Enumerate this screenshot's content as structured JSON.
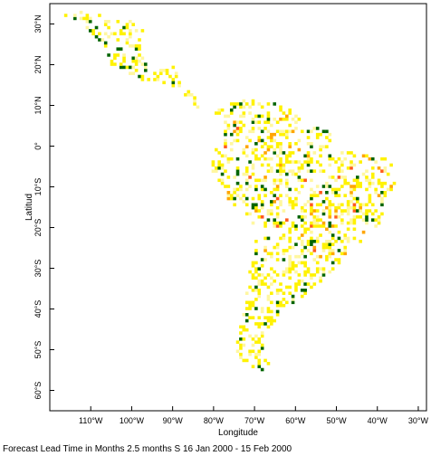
{
  "map": {
    "x_axis_title": "Longitude",
    "y_axis_title": "Latitud",
    "caption": "Forecast Lead Time in Months 2.5 months S 16 Jan 2000 - 15 Feb 2000",
    "lon_range": [
      -120,
      -28
    ],
    "lat_range": [
      -65,
      35
    ],
    "colors": {
      "yellow": "#fff200",
      "light_yellow": "#fff7a0",
      "orange": "#ffa500",
      "red_orange": "#ff5a1f",
      "green": "#006400",
      "frame": "#000000"
    },
    "lon_ticks": [
      {
        "value": -110,
        "label": "110°W"
      },
      {
        "value": -100,
        "label": "100°W"
      },
      {
        "value": -90,
        "label": "90°W"
      },
      {
        "value": -80,
        "label": "80°W"
      },
      {
        "value": -70,
        "label": "70°W"
      },
      {
        "value": -60,
        "label": "60°W"
      },
      {
        "value": -50,
        "label": "50°W"
      },
      {
        "value": -40,
        "label": "40°W"
      },
      {
        "value": -30,
        "label": "30°W"
      }
    ],
    "lat_ticks": [
      {
        "value": 30,
        "label": "30°N"
      },
      {
        "value": 20,
        "label": "20°N"
      },
      {
        "value": 10,
        "label": "10°N"
      },
      {
        "value": 0,
        "label": "0°"
      },
      {
        "value": -10,
        "label": "10°S"
      },
      {
        "value": -20,
        "label": "20°S"
      },
      {
        "value": -30,
        "label": "30°S"
      },
      {
        "value": -40,
        "label": "40°S"
      },
      {
        "value": -50,
        "label": "50°S"
      },
      {
        "value": -60,
        "label": "60°S"
      }
    ]
  }
}
